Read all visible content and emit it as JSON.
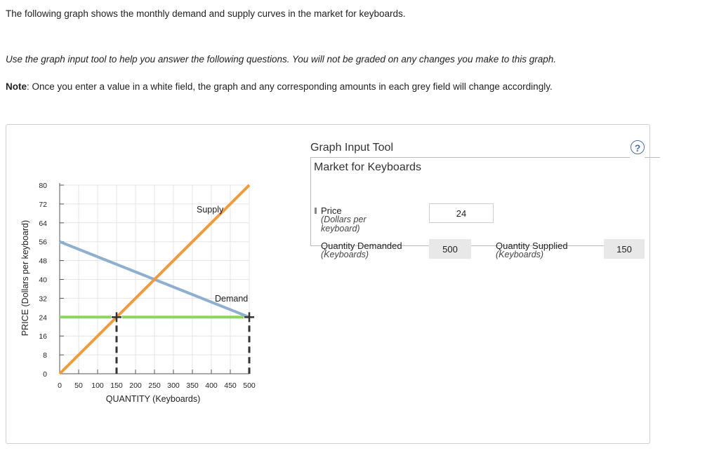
{
  "intro": "The following graph shows the monthly demand and supply curves in the market for keyboards.",
  "instructions": "Use the graph input tool to help you answer the following questions. You will not be graded on any changes you make to this graph.",
  "note": {
    "label": "Note",
    "text": ": Once you enter a value in a white field, the graph and any corresponding amounts in each grey field will change accordingly."
  },
  "tool": {
    "title": "Graph Input Tool",
    "help_symbol": "?",
    "market_title": "Market for Keyboards",
    "price_label": "Price",
    "price_sub": "(Dollars per keyboard)",
    "price_value": "24",
    "qd_label": "Quantity Demanded",
    "qd_sub": "(Keyboards)",
    "qd_value": "500",
    "qs_label": "Quantity Supplied",
    "qs_sub": "(Keyboards)",
    "qs_value": "150"
  },
  "colors": {
    "supply": "#f39a3a",
    "demand": "#8eafd0",
    "price_line": "#8ed45f",
    "marker": "#333333"
  },
  "chart_data": {
    "type": "line",
    "xlabel": "QUANTITY (Keyboards)",
    "ylabel": "PRICE (Dollars per keyboard)",
    "xlim": [
      0,
      500
    ],
    "ylim": [
      0,
      80
    ],
    "x_ticks": [
      0,
      50,
      100,
      150,
      200,
      250,
      300,
      350,
      400,
      450,
      500
    ],
    "y_ticks": [
      0,
      8,
      16,
      24,
      32,
      40,
      48,
      56,
      64,
      72,
      80
    ],
    "series": [
      {
        "name": "Supply",
        "x": [
          0,
          500
        ],
        "y": [
          0,
          80
        ]
      },
      {
        "name": "Demand",
        "x": [
          0,
          500
        ],
        "y": [
          56,
          24
        ]
      }
    ],
    "price_line": {
      "y": 24,
      "x_from": 0,
      "x_to": 500
    },
    "markers": [
      {
        "x": 150,
        "y": 24
      },
      {
        "x": 500,
        "y": 24
      }
    ]
  }
}
